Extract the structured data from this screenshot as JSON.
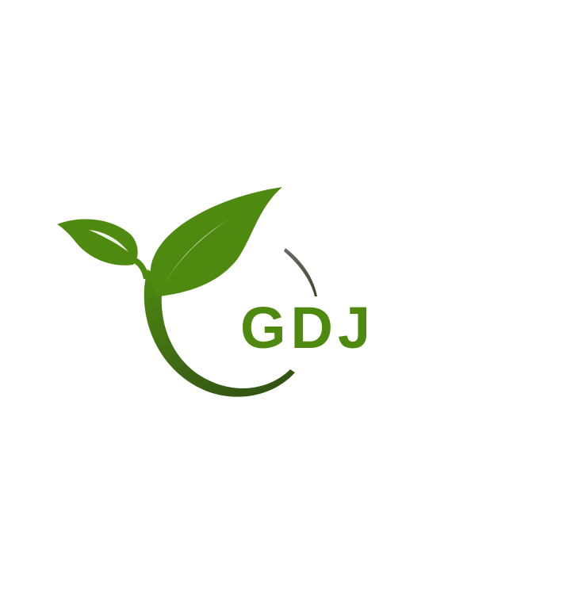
{
  "logo": {
    "text": "GDJ",
    "colors": {
      "leaf": "#4f8a10",
      "leaf_light": "#5f9a1a",
      "swoosh_dark": "#2f4f12",
      "text": "#4f8a10",
      "background": "#ffffff"
    },
    "icons": [
      "sprout-leaves-icon",
      "circular-swoosh-icon"
    ]
  }
}
